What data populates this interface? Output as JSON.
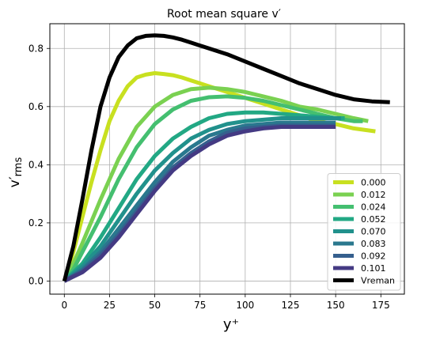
{
  "chart_data": {
    "type": "line",
    "title": "Root mean square v′",
    "xlabel": "y⁺",
    "ylabel": "v′rms",
    "ylabel_main": "v′",
    "ylabel_sub": "rms",
    "xlim": [
      -8,
      188
    ],
    "ylim": [
      -0.045,
      0.885
    ],
    "xticks": [
      0,
      25,
      50,
      75,
      100,
      125,
      150,
      175
    ],
    "yticks": [
      0.0,
      0.2,
      0.4,
      0.6,
      0.8
    ],
    "ytick_labels": [
      "0.0",
      "0.2",
      "0.4",
      "0.6",
      "0.8"
    ],
    "grid": true,
    "legend_position": "lower right",
    "series": [
      {
        "name": "0.000",
        "color": "#c8e020",
        "x": [
          0,
          5,
          10,
          15,
          20,
          25,
          30,
          35,
          40,
          45,
          50,
          55,
          60,
          65,
          70,
          80,
          90,
          100,
          110,
          120,
          130,
          140,
          150,
          160,
          172
        ],
        "y": [
          0,
          0.1,
          0.22,
          0.34,
          0.45,
          0.55,
          0.62,
          0.67,
          0.7,
          0.71,
          0.715,
          0.712,
          0.708,
          0.7,
          0.69,
          0.67,
          0.65,
          0.63,
          0.61,
          0.59,
          0.57,
          0.55,
          0.54,
          0.525,
          0.515
        ]
      },
      {
        "name": "0.012",
        "color": "#7ad151",
        "x": [
          0,
          5,
          10,
          20,
          30,
          40,
          50,
          60,
          70,
          80,
          90,
          100,
          110,
          120,
          130,
          140,
          150,
          160,
          168
        ],
        "y": [
          0,
          0.06,
          0.13,
          0.28,
          0.42,
          0.53,
          0.6,
          0.64,
          0.66,
          0.665,
          0.66,
          0.65,
          0.635,
          0.62,
          0.6,
          0.59,
          0.575,
          0.56,
          0.55
        ]
      },
      {
        "name": "0.024",
        "color": "#44bf70",
        "x": [
          0,
          5,
          10,
          20,
          30,
          40,
          50,
          60,
          70,
          80,
          90,
          100,
          110,
          120,
          130,
          140,
          150,
          160,
          165
        ],
        "y": [
          0,
          0.04,
          0.1,
          0.22,
          0.35,
          0.46,
          0.54,
          0.59,
          0.62,
          0.632,
          0.635,
          0.63,
          0.62,
          0.605,
          0.59,
          0.575,
          0.56,
          0.55,
          0.55
        ]
      },
      {
        "name": "0.052",
        "color": "#22a884",
        "x": [
          0,
          5,
          10,
          20,
          30,
          40,
          50,
          60,
          70,
          80,
          90,
          100,
          110,
          120,
          130,
          140,
          150,
          155
        ],
        "y": [
          0,
          0.03,
          0.06,
          0.15,
          0.25,
          0.35,
          0.43,
          0.49,
          0.53,
          0.56,
          0.575,
          0.58,
          0.58,
          0.575,
          0.57,
          0.565,
          0.56,
          0.56
        ]
      },
      {
        "name": "0.070",
        "color": "#21918c",
        "x": [
          0,
          5,
          10,
          20,
          30,
          40,
          50,
          60,
          70,
          80,
          90,
          100,
          110,
          120,
          130,
          140,
          150,
          153
        ],
        "y": [
          0,
          0.025,
          0.05,
          0.12,
          0.21,
          0.3,
          0.38,
          0.44,
          0.49,
          0.52,
          0.54,
          0.55,
          0.555,
          0.56,
          0.56,
          0.56,
          0.56,
          0.56
        ]
      },
      {
        "name": "0.083",
        "color": "#2a788e",
        "x": [
          0,
          5,
          10,
          20,
          30,
          40,
          50,
          60,
          70,
          80,
          90,
          100,
          110,
          120,
          130,
          140,
          150
        ],
        "y": [
          0,
          0.02,
          0.04,
          0.1,
          0.18,
          0.26,
          0.34,
          0.41,
          0.46,
          0.5,
          0.52,
          0.535,
          0.54,
          0.545,
          0.545,
          0.545,
          0.545
        ]
      },
      {
        "name": "0.092",
        "color": "#355f8d",
        "x": [
          0,
          5,
          10,
          20,
          30,
          40,
          50,
          60,
          70,
          80,
          90,
          100,
          110,
          120,
          130,
          140,
          150
        ],
        "y": [
          0,
          0.018,
          0.035,
          0.09,
          0.16,
          0.24,
          0.32,
          0.39,
          0.44,
          0.48,
          0.51,
          0.525,
          0.53,
          0.535,
          0.535,
          0.535,
          0.535
        ]
      },
      {
        "name": "0.101",
        "color": "#443a83",
        "x": [
          0,
          5,
          10,
          20,
          30,
          40,
          50,
          60,
          70,
          80,
          90,
          100,
          110,
          120,
          130,
          140,
          150
        ],
        "y": [
          0,
          0.015,
          0.03,
          0.08,
          0.15,
          0.23,
          0.31,
          0.38,
          0.43,
          0.47,
          0.5,
          0.515,
          0.525,
          0.53,
          0.53,
          0.53,
          0.53
        ]
      },
      {
        "name": "Vreman",
        "color": "#000000",
        "x": [
          0,
          5,
          10,
          15,
          20,
          25,
          30,
          35,
          40,
          45,
          50,
          55,
          60,
          65,
          70,
          80,
          90,
          100,
          110,
          120,
          130,
          140,
          150,
          160,
          170,
          180
        ],
        "y": [
          0,
          0.12,
          0.28,
          0.45,
          0.6,
          0.7,
          0.77,
          0.81,
          0.835,
          0.843,
          0.845,
          0.843,
          0.838,
          0.83,
          0.82,
          0.8,
          0.78,
          0.755,
          0.73,
          0.705,
          0.68,
          0.66,
          0.64,
          0.625,
          0.618,
          0.615
        ]
      }
    ]
  }
}
